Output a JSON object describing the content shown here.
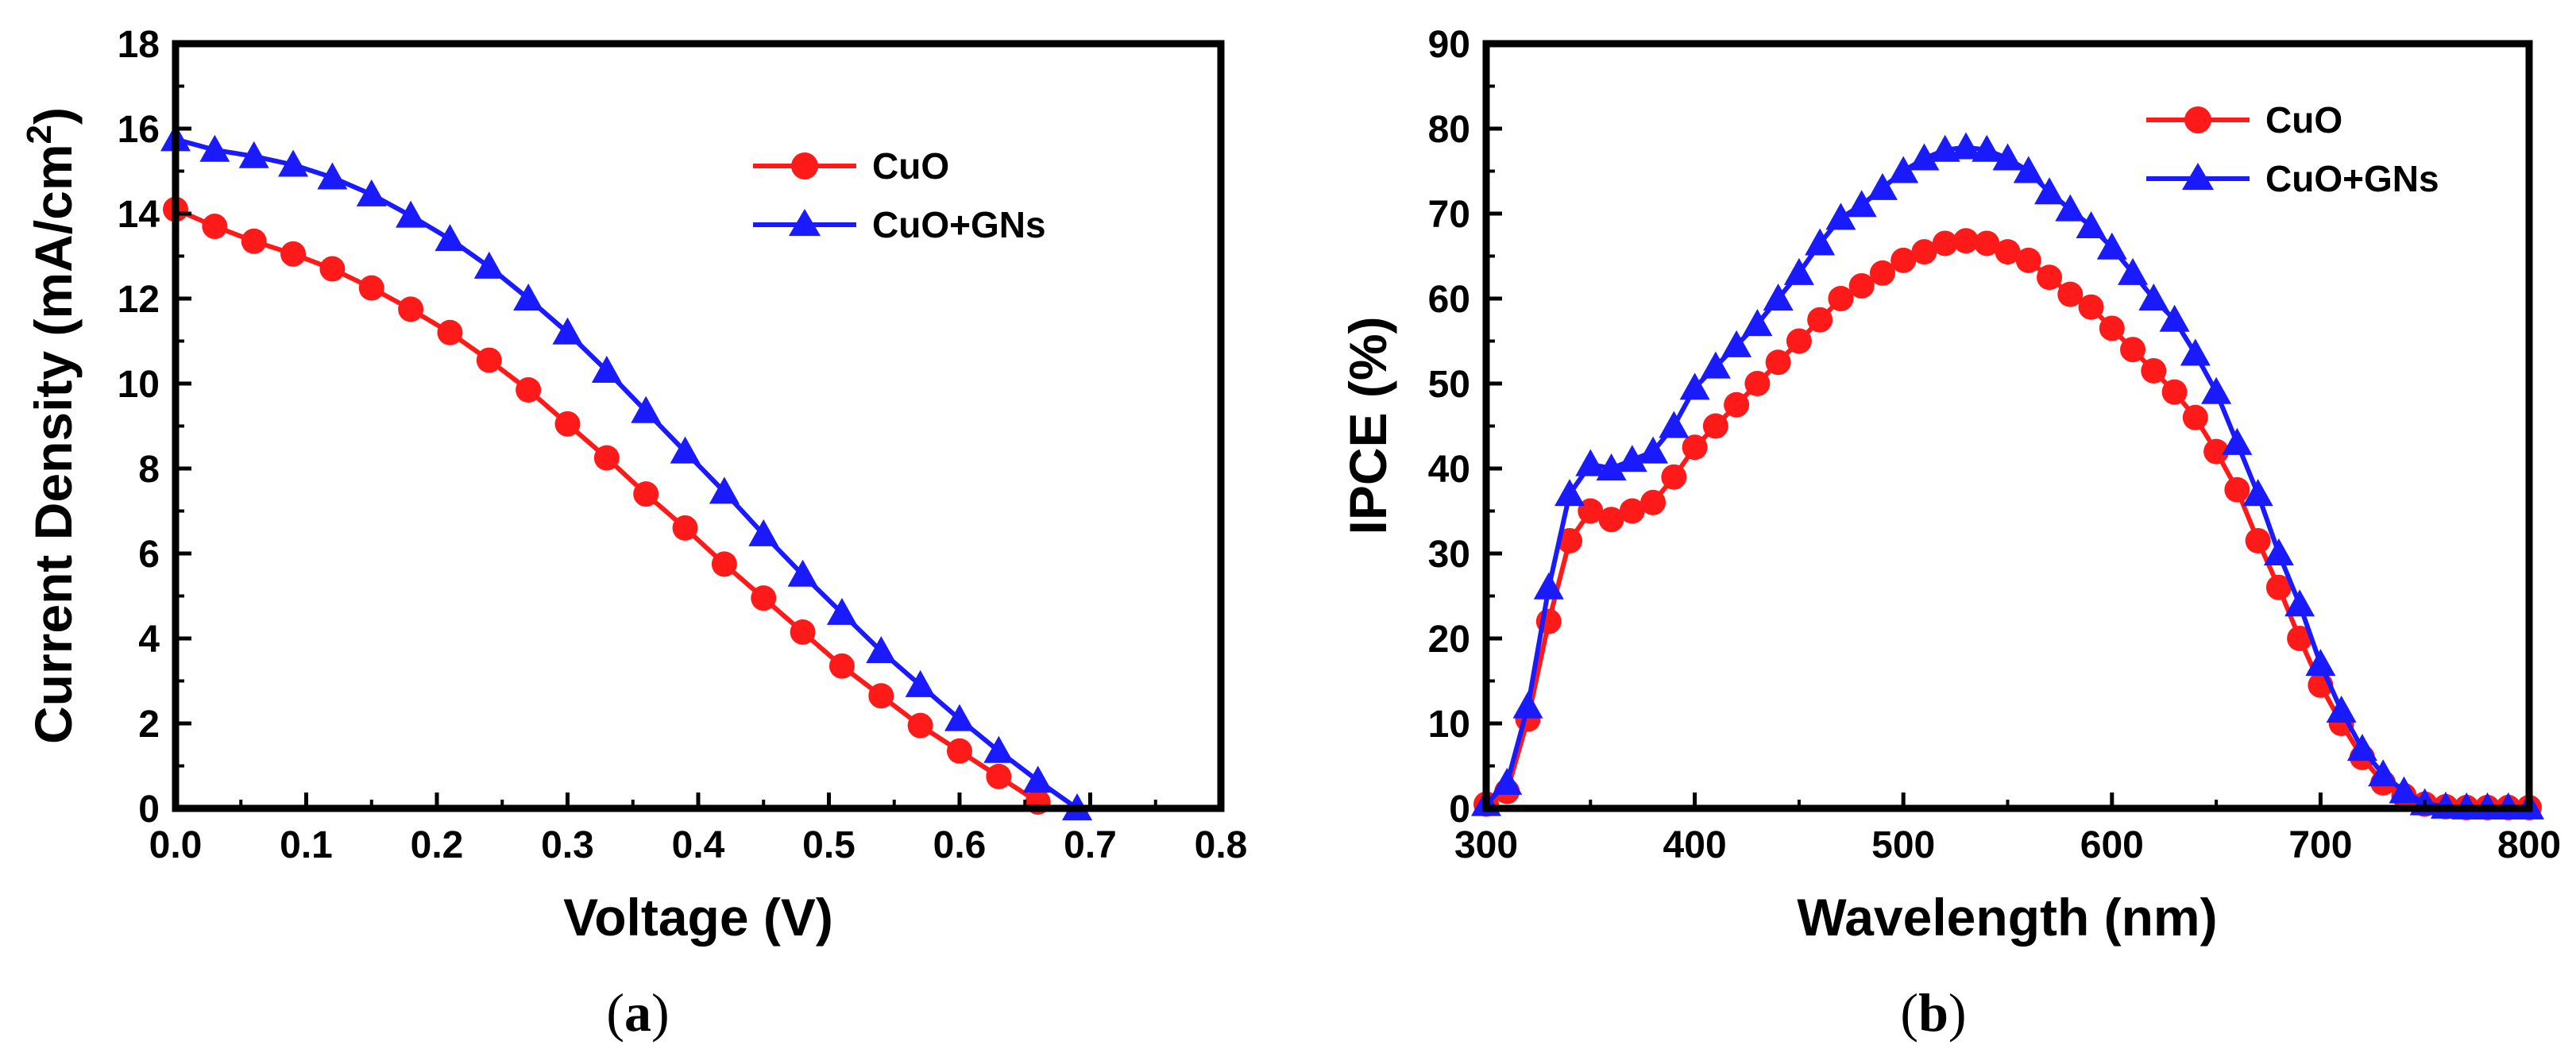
{
  "chart_data": [
    {
      "type": "line",
      "caption_open": "(",
      "caption_letter": "a",
      "caption_close": ")",
      "xlabel": "Voltage (V)",
      "ylabel": "Current Density (mA/cm",
      "ylabel_superscript": "2",
      "ylabel_close": ")",
      "xlim": [
        0.0,
        0.8
      ],
      "ylim": [
        0,
        18
      ],
      "xticks": [
        "0.0",
        "0.1",
        "0.2",
        "0.3",
        "0.4",
        "0.5",
        "0.6",
        "0.7",
        "0.8"
      ],
      "yticks": [
        "0",
        "2",
        "4",
        "6",
        "8",
        "10",
        "12",
        "14",
        "16",
        "18"
      ],
      "legend_position": "top-right",
      "series": [
        {
          "name": "CuO",
          "color": "#ff1a1a",
          "marker": "circle",
          "x": [
            0.0,
            0.03,
            0.06,
            0.09,
            0.12,
            0.15,
            0.18,
            0.21,
            0.24,
            0.27,
            0.3,
            0.33,
            0.36,
            0.39,
            0.42,
            0.45,
            0.48,
            0.51,
            0.54,
            0.57,
            0.6,
            0.63,
            0.66
          ],
          "y": [
            14.1,
            13.7,
            13.35,
            13.05,
            12.7,
            12.25,
            11.75,
            11.2,
            10.55,
            9.85,
            9.05,
            8.25,
            7.4,
            6.6,
            5.75,
            4.95,
            4.15,
            3.35,
            2.65,
            1.95,
            1.35,
            0.75,
            0.15
          ]
        },
        {
          "name": "CuO+GNs",
          "color": "#1a1aff",
          "marker": "triangle",
          "x": [
            0.0,
            0.03,
            0.06,
            0.09,
            0.12,
            0.15,
            0.18,
            0.21,
            0.24,
            0.27,
            0.3,
            0.33,
            0.36,
            0.39,
            0.42,
            0.45,
            0.48,
            0.51,
            0.54,
            0.57,
            0.6,
            0.63,
            0.66,
            0.69
          ],
          "y": [
            15.75,
            15.5,
            15.35,
            15.15,
            14.85,
            14.45,
            13.95,
            13.4,
            12.75,
            12.0,
            11.2,
            10.3,
            9.35,
            8.4,
            7.45,
            6.45,
            5.5,
            4.6,
            3.7,
            2.9,
            2.1,
            1.35,
            0.65,
            0.0
          ]
        }
      ]
    },
    {
      "type": "line",
      "caption_open": "(",
      "caption_letter": "b",
      "caption_close": ")",
      "xlabel": "Wavelength (nm)",
      "ylabel": "IPCE (%)",
      "xlim": [
        300,
        800
      ],
      "ylim": [
        0,
        90
      ],
      "xticks": [
        "300",
        "400",
        "500",
        "600",
        "700",
        "800"
      ],
      "yticks": [
        "0",
        "10",
        "20",
        "30",
        "40",
        "50",
        "60",
        "70",
        "80",
        "90"
      ],
      "legend_position": "top-right",
      "series": [
        {
          "name": "CuO",
          "color": "#ff1a1a",
          "marker": "circle",
          "x": [
            300,
            310,
            320,
            330,
            340,
            350,
            360,
            370,
            380,
            390,
            400,
            410,
            420,
            430,
            440,
            450,
            460,
            470,
            480,
            490,
            500,
            510,
            520,
            530,
            540,
            550,
            560,
            570,
            580,
            590,
            600,
            610,
            620,
            630,
            640,
            650,
            660,
            670,
            680,
            690,
            700,
            710,
            720,
            730,
            740,
            750,
            760,
            770,
            780,
            790,
            800
          ],
          "y": [
            0.5,
            2,
            10.5,
            22,
            31.5,
            35,
            34,
            35,
            36,
            39,
            42.5,
            45,
            47.5,
            50,
            52.5,
            55,
            57.5,
            60,
            61.5,
            63,
            64.5,
            65.5,
            66.5,
            66.8,
            66.5,
            65.5,
            64.5,
            62.5,
            60.5,
            59,
            56.5,
            54,
            51.5,
            49,
            46,
            42,
            37.5,
            31.5,
            26,
            20,
            14.5,
            10,
            6,
            3,
            1.5,
            0.5,
            0.2,
            0.1,
            0.1,
            0.1,
            0.1
          ]
        },
        {
          "name": "CuO+GNs",
          "color": "#1a1aff",
          "marker": "triangle",
          "x": [
            300,
            310,
            320,
            330,
            340,
            350,
            360,
            370,
            380,
            390,
            400,
            410,
            420,
            430,
            440,
            450,
            460,
            470,
            480,
            490,
            500,
            510,
            520,
            530,
            540,
            550,
            560,
            570,
            580,
            590,
            600,
            610,
            620,
            630,
            640,
            650,
            660,
            670,
            680,
            690,
            700,
            710,
            720,
            730,
            740,
            750,
            760,
            770,
            780,
            790,
            800
          ],
          "y": [
            0.5,
            3,
            12,
            26,
            37,
            40.5,
            40,
            41,
            42,
            45,
            49.5,
            52,
            54.5,
            57,
            60,
            63,
            66.5,
            69.5,
            71,
            73,
            75,
            76.5,
            77.5,
            77.8,
            77.5,
            76.5,
            75,
            72.5,
            70.5,
            68.5,
            66,
            63,
            60,
            57.5,
            53.5,
            49,
            43,
            37,
            30,
            24,
            17,
            11.5,
            7,
            4,
            2,
            0.6,
            0.2,
            0.1,
            0.1,
            0.1,
            0.1
          ]
        }
      ]
    }
  ]
}
